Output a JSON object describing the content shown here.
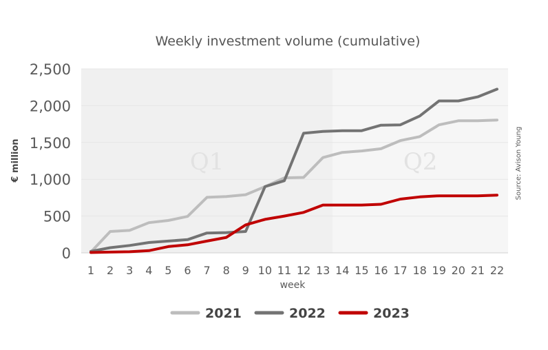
{
  "chart_data": {
    "type": "line",
    "title": "Weekly investment volume (cumulative)",
    "xlabel": "week",
    "ylabel": "€ million",
    "source": "Source: Avison Young",
    "x": [
      1,
      2,
      3,
      4,
      5,
      6,
      7,
      8,
      9,
      10,
      11,
      12,
      13,
      14,
      15,
      16,
      17,
      18,
      19,
      20,
      21,
      22
    ],
    "x_tick_labels": [
      "1",
      "2",
      "3",
      "4",
      "5",
      "6",
      "7",
      "8",
      "9",
      "10",
      "11",
      "12",
      "13",
      "14",
      "15",
      "16",
      "17",
      "18",
      "19",
      "20",
      "21",
      "22"
    ],
    "ylim": [
      0,
      2500
    ],
    "y_ticks": [
      0,
      500,
      1000,
      1500,
      2000,
      2500
    ],
    "y_tick_labels": [
      "0",
      "500",
      "1,000",
      "1,500",
      "2,000",
      "2,500"
    ],
    "grid": true,
    "legend_position": "bottom",
    "regions": [
      {
        "label": "Q1",
        "from_week": 1,
        "to_week": 13,
        "color": "#f0f0f0"
      },
      {
        "label": "Q2",
        "from_week": 13,
        "to_week": 22,
        "color": "#f6f6f6"
      }
    ],
    "series": [
      {
        "name": "2021",
        "color": "#bdbdbd",
        "values": [
          10,
          290,
          305,
          410,
          440,
          495,
          755,
          765,
          790,
          900,
          1020,
          1025,
          1295,
          1365,
          1385,
          1415,
          1525,
          1580,
          1740,
          1795,
          1795,
          1805
        ]
      },
      {
        "name": "2022",
        "color": "#737373",
        "values": [
          20,
          70,
          100,
          140,
          160,
          180,
          270,
          275,
          290,
          900,
          980,
          1625,
          1650,
          1660,
          1660,
          1735,
          1740,
          1860,
          2065,
          2065,
          2120,
          2225
        ]
      },
      {
        "name": "2023",
        "color": "#c00000",
        "values": [
          5,
          10,
          15,
          30,
          85,
          110,
          160,
          210,
          380,
          455,
          500,
          550,
          650,
          650,
          650,
          660,
          730,
          760,
          775,
          775,
          775,
          785
        ]
      }
    ]
  }
}
